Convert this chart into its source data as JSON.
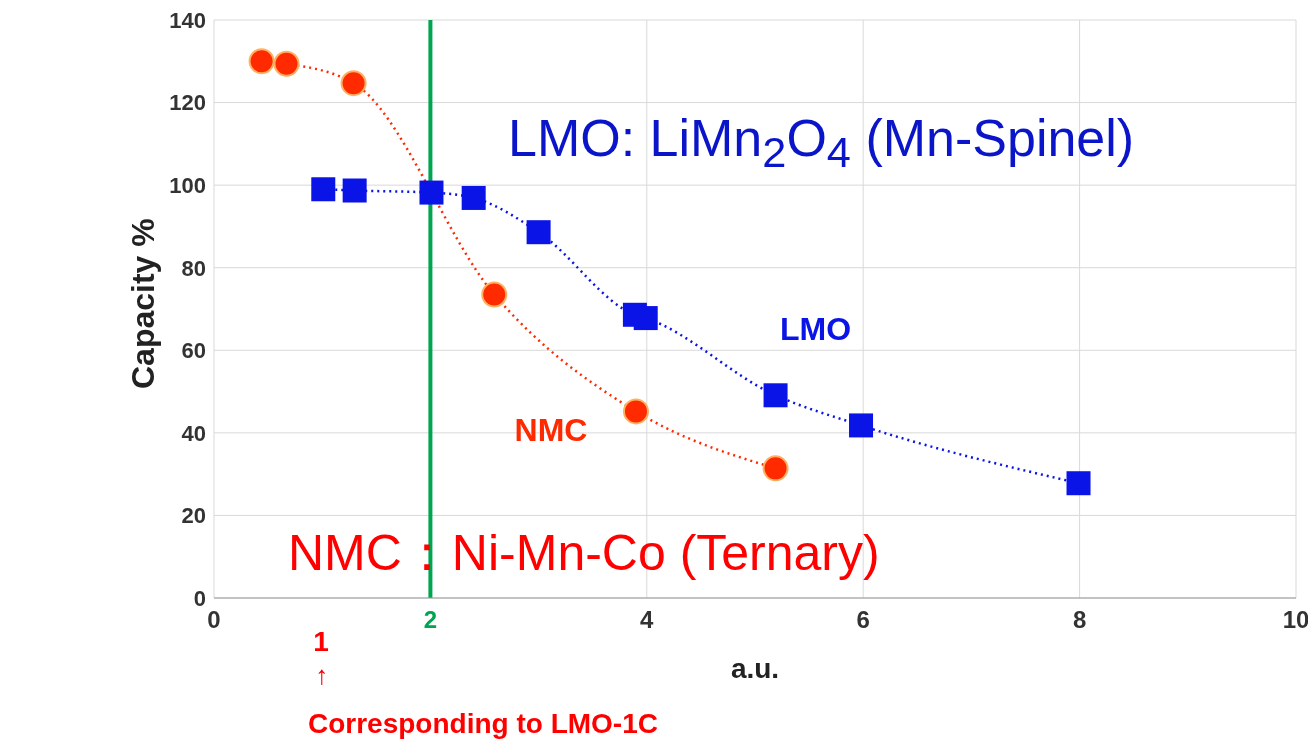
{
  "chart_data": {
    "type": "line",
    "xlabel": "a.u.",
    "ylabel": "Capacity %",
    "xlim": [
      0,
      10
    ],
    "xticks": [
      0,
      2,
      4,
      6,
      8,
      10
    ],
    "ylim": [
      0,
      140
    ],
    "yticks": [
      0,
      20,
      40,
      60,
      80,
      100,
      120,
      140
    ],
    "grid": true,
    "legend": false,
    "line_style": "dotted",
    "series": [
      {
        "name": "NMC",
        "color": "#ff2a00",
        "marker": "circle",
        "x": [
          0.44,
          0.67,
          1.29,
          2.59,
          3.9,
          5.19
        ],
        "values": [
          130,
          129.4,
          124.7,
          73.5,
          45.2,
          31.4
        ]
      },
      {
        "name": "LMO",
        "color": "#0a14e6",
        "marker": "square",
        "x": [
          1.01,
          1.3,
          2.01,
          2.4,
          3.0,
          3.89,
          3.99,
          5.19,
          5.98,
          7.99
        ],
        "values": [
          99,
          98.7,
          98.2,
          96.9,
          88.6,
          68.6,
          67.8,
          49.1,
          41.8,
          27.8
        ]
      }
    ],
    "ref_lines": [
      {
        "axis": "x",
        "value": 2,
        "color": "#00a550"
      }
    ],
    "annotations": [
      "LMO: LiMn$_{2}$O$_{4}$ (Mn-Spinel)",
      "NMC：Ni-Mn-Co (Ternary)",
      "1",
      "↑",
      "Corresponding to LMO-1C"
    ]
  }
}
